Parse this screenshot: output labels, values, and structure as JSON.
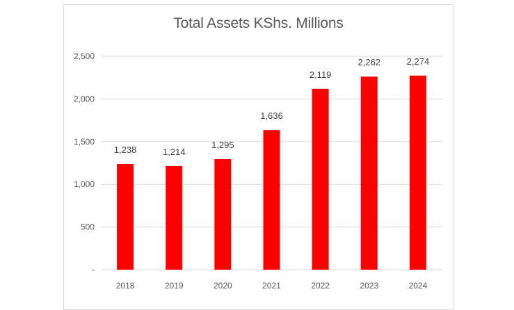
{
  "chart_data": {
    "type": "bar",
    "title": "Total Assets KShs. Millions",
    "categories": [
      "2018",
      "2019",
      "2020",
      "2021",
      "2022",
      "2023",
      "2024"
    ],
    "values": [
      1238,
      1214,
      1295,
      1636,
      2119,
      2262,
      2274
    ],
    "data_labels": [
      "1,238",
      "1,214",
      "1,295",
      "1,636",
      "2,119",
      "2,262",
      "2,274"
    ],
    "y_ticks": [
      0,
      500,
      1000,
      1500,
      2000,
      2500
    ],
    "y_tick_labels": [
      "-",
      "500",
      "1,000",
      "1,500",
      "2,000",
      "2,500"
    ],
    "ylim": [
      0,
      2500
    ],
    "xlabel": "",
    "ylabel": "",
    "grid": true,
    "bar_color": "#ff0000",
    "grid_color": "#d9d9d9"
  }
}
